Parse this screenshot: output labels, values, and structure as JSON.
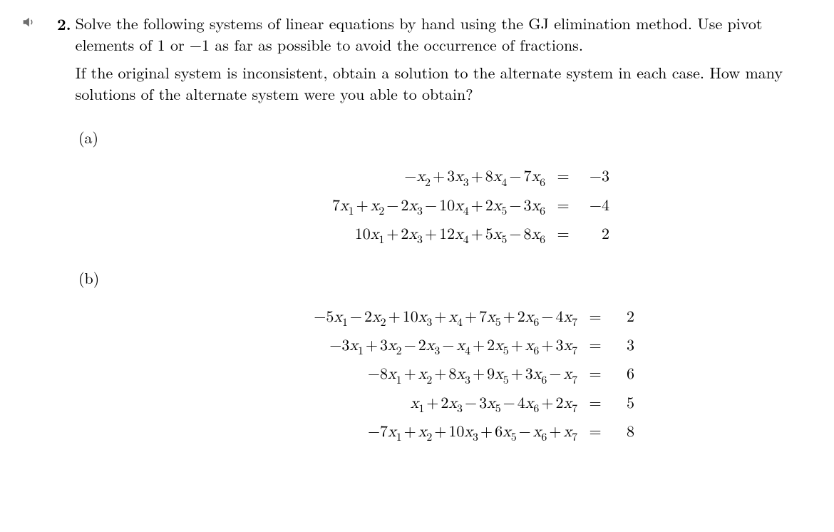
{
  "problem": {
    "number": "2.",
    "para1_prefix": "Solve",
    "para1_rest": " the following systems of linear equations by hand using the GJ elimination method. Use pivot elements of 1 or −1 as far as possible to avoid the occurrence of fractions.",
    "para2": "If the original system is inconsistent, obtain a solution to the alternate system in each case. How many solutions of the alternate system were you able to obtain?",
    "parts": {
      "a": {
        "label": "(a)",
        "equations": [
          {
            "terms": [
              {
                "coef": "−",
                "var": "x",
                "sub": "2"
              },
              {
                "op": "+",
                "coef": "3",
                "var": "x",
                "sub": "3"
              },
              {
                "op": "+",
                "coef": "8",
                "var": "x",
                "sub": "4"
              },
              {
                "op": "−",
                "coef": "7",
                "var": "x",
                "sub": "6"
              }
            ],
            "rhs": "−3"
          },
          {
            "terms": [
              {
                "coef": "7",
                "var": "x",
                "sub": "1"
              },
              {
                "op": "+",
                "coef": "",
                "var": "x",
                "sub": "2"
              },
              {
                "op": "−",
                "coef": "2",
                "var": "x",
                "sub": "3"
              },
              {
                "op": "−",
                "coef": "10",
                "var": "x",
                "sub": "4"
              },
              {
                "op": "+",
                "coef": "2",
                "var": "x",
                "sub": "5"
              },
              {
                "op": "−",
                "coef": "3",
                "var": "x",
                "sub": "6"
              }
            ],
            "rhs": "−4"
          },
          {
            "terms": [
              {
                "coef": "10",
                "var": "x",
                "sub": "1"
              },
              {
                "op": "+",
                "coef": "2",
                "var": "x",
                "sub": "3"
              },
              {
                "op": "+",
                "coef": "12",
                "var": "x",
                "sub": "4"
              },
              {
                "op": "+",
                "coef": "5",
                "var": "x",
                "sub": "5"
              },
              {
                "op": "−",
                "coef": "8",
                "var": "x",
                "sub": "6"
              }
            ],
            "rhs": "2"
          }
        ]
      },
      "b": {
        "label": "(b)",
        "equations": [
          {
            "terms": [
              {
                "coef": "−5",
                "var": "x",
                "sub": "1"
              },
              {
                "op": "−",
                "coef": "2",
                "var": "x",
                "sub": "2"
              },
              {
                "op": "+",
                "coef": "10",
                "var": "x",
                "sub": "3"
              },
              {
                "op": "+",
                "coef": "",
                "var": "x",
                "sub": "4"
              },
              {
                "op": "+",
                "coef": "7",
                "var": "x",
                "sub": "5"
              },
              {
                "op": "+",
                "coef": "2",
                "var": "x",
                "sub": "6"
              },
              {
                "op": "−",
                "coef": "4",
                "var": "x",
                "sub": "7"
              }
            ],
            "rhs": "2"
          },
          {
            "terms": [
              {
                "coef": "−3",
                "var": "x",
                "sub": "1"
              },
              {
                "op": "+",
                "coef": "3",
                "var": "x",
                "sub": "2"
              },
              {
                "op": "−",
                "coef": "2",
                "var": "x",
                "sub": "3"
              },
              {
                "op": "−",
                "coef": "",
                "var": "x",
                "sub": "4"
              },
              {
                "op": "+",
                "coef": "2",
                "var": "x",
                "sub": "5"
              },
              {
                "op": "+",
                "coef": "",
                "var": "x",
                "sub": "6"
              },
              {
                "op": "+",
                "coef": "3",
                "var": "x",
                "sub": "7"
              }
            ],
            "rhs": "3"
          },
          {
            "terms": [
              {
                "coef": "−8",
                "var": "x",
                "sub": "1"
              },
              {
                "op": "+",
                "coef": "",
                "var": "x",
                "sub": "2"
              },
              {
                "op": "+",
                "coef": "8",
                "var": "x",
                "sub": "3"
              },
              {
                "op": "+",
                "coef": "9",
                "var": "x",
                "sub": "5"
              },
              {
                "op": "+",
                "coef": "3",
                "var": "x",
                "sub": "6"
              },
              {
                "op": "−",
                "coef": "",
                "var": "x",
                "sub": "7"
              }
            ],
            "rhs": "6"
          },
          {
            "terms": [
              {
                "coef": "",
                "var": "x",
                "sub": "1"
              },
              {
                "op": "+",
                "coef": "2",
                "var": "x",
                "sub": "3"
              },
              {
                "op": "−",
                "coef": "3",
                "var": "x",
                "sub": "5"
              },
              {
                "op": "−",
                "coef": "4",
                "var": "x",
                "sub": "6"
              },
              {
                "op": "+",
                "coef": "2",
                "var": "x",
                "sub": "7"
              }
            ],
            "rhs": "5"
          },
          {
            "terms": [
              {
                "coef": "−7",
                "var": "x",
                "sub": "1"
              },
              {
                "op": "+",
                "coef": "",
                "var": "x",
                "sub": "2"
              },
              {
                "op": "+",
                "coef": "10",
                "var": "x",
                "sub": "3"
              },
              {
                "op": "+",
                "coef": "6",
                "var": "x",
                "sub": "5"
              },
              {
                "op": "−",
                "coef": "",
                "var": "x",
                "sub": "6"
              },
              {
                "op": "+",
                "coef": "",
                "var": "x",
                "sub": "7"
              }
            ],
            "rhs": "8"
          }
        ]
      }
    }
  },
  "colors": {
    "text": "#000000",
    "background": "#ffffff",
    "icon": "#6e6e6e"
  },
  "typography": {
    "body_fontsize": 22,
    "font_family": "Latin Modern Roman / Computer Modern (serif)"
  }
}
